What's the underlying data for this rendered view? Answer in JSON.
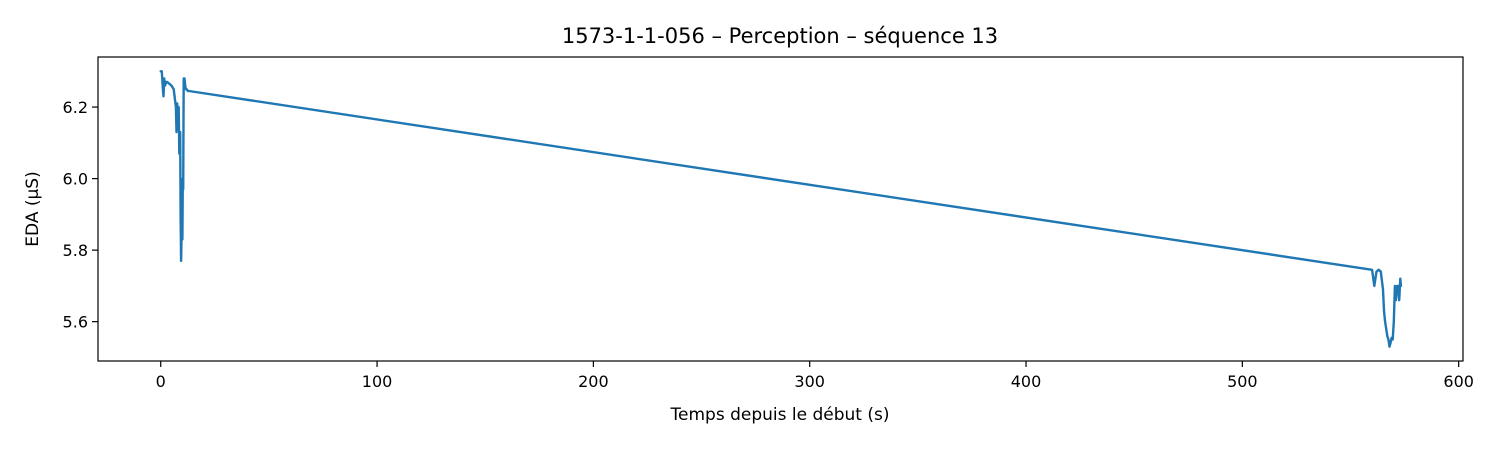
{
  "chart_data": {
    "type": "line",
    "title": "1573-1-1-056 – Perception – séquence 13",
    "xlabel": "Temps depuis le début (s)",
    "ylabel": "EDA (µS)",
    "xlim": [
      -29,
      602
    ],
    "ylim": [
      5.49,
      6.34
    ],
    "xticks": [
      0,
      100,
      200,
      300,
      400,
      500,
      600
    ],
    "yticks": [
      5.6,
      5.8,
      6.0,
      6.2
    ],
    "xtick_labels": [
      "0",
      "100",
      "200",
      "300",
      "400",
      "500",
      "600"
    ],
    "ytick_labels": [
      "5.6",
      "5.8",
      "6.0",
      "6.2"
    ],
    "grid": false,
    "color": "#1f77b4",
    "series": [
      {
        "x": [
          0,
          0.5,
          1,
          1.3,
          1.6,
          2,
          2.5,
          3,
          4,
          5,
          6,
          7,
          7.3,
          7.6,
          8,
          8.3,
          8.6,
          9,
          9.2,
          9.4,
          9.6,
          9.8,
          10,
          10.2,
          10.4,
          10.6,
          10.8,
          11,
          11.3,
          11.6,
          12,
          12.5,
          13,
          560,
          561,
          561.5,
          562,
          563,
          564,
          565,
          565.5,
          566,
          566.5,
          567,
          567.5,
          568,
          568.5,
          569,
          569.5,
          570,
          570.5,
          571,
          571.5,
          572,
          572.5,
          573,
          573.3
        ],
        "y": [
          6.3,
          6.3,
          6.25,
          6.23,
          6.28,
          6.26,
          6.27,
          6.27,
          6.265,
          6.26,
          6.25,
          6.2,
          6.13,
          6.21,
          6.14,
          6.2,
          6.07,
          6.13,
          5.9,
          5.77,
          5.83,
          5.9,
          5.83,
          6.0,
          5.97,
          6.28,
          6.26,
          6.28,
          6.26,
          6.25,
          6.25,
          6.245,
          6.245,
          5.745,
          5.7,
          5.72,
          5.74,
          5.745,
          5.74,
          5.69,
          5.63,
          5.6,
          5.58,
          5.56,
          5.55,
          5.53,
          5.54,
          5.555,
          5.55,
          5.6,
          5.7,
          5.66,
          5.7,
          5.7,
          5.66,
          5.72,
          5.7
        ]
      }
    ]
  }
}
